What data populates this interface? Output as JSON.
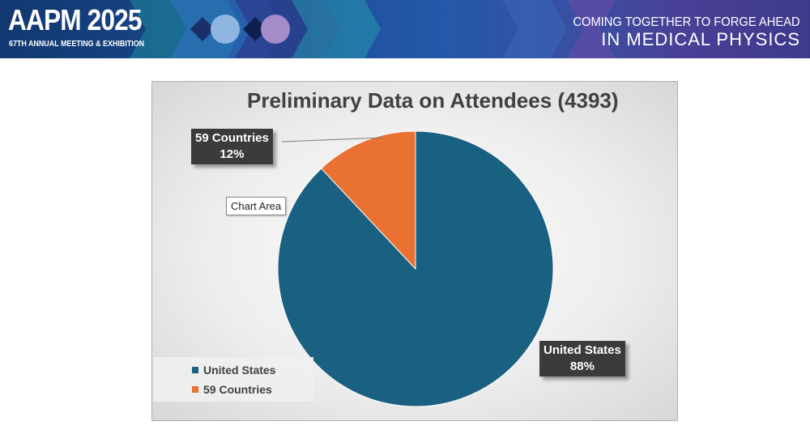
{
  "banner": {
    "logo_title": "AAPM 2025",
    "logo_subtitle": "67TH ANNUAL MEETING & EXHIBITION",
    "tagline_line1": "COMING TOGETHER TO FORGE AHEAD",
    "tagline_line2": "IN MEDICAL PHYSICS"
  },
  "chart_data": {
    "type": "pie",
    "title": "Preliminary Data on Attendees (4393)",
    "categories": [
      "United States",
      "59 Countries"
    ],
    "values": [
      88,
      12
    ],
    "colors": [
      "#1a6080",
      "#e97132"
    ],
    "data_labels": [
      {
        "name": "United States",
        "percent": "88%"
      },
      {
        "name": "59 Countries",
        "percent": "12%"
      }
    ],
    "legend": {
      "position": "bottom-left",
      "entries": [
        "United States",
        "59 Countries"
      ]
    }
  },
  "tooltip": "Chart Area"
}
